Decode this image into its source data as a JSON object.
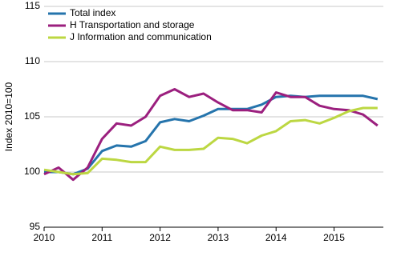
{
  "chart_data": {
    "type": "line",
    "y_label": "Index 2010=100",
    "x": [
      2010,
      2010.25,
      2010.5,
      2010.75,
      2011,
      2011.25,
      2011.5,
      2011.75,
      2012,
      2012.25,
      2012.5,
      2012.75,
      2013,
      2013.25,
      2013.5,
      2013.75,
      2014,
      2014.25,
      2014.5,
      2014.75,
      2015,
      2015.25,
      2015.5,
      2015.75
    ],
    "series": [
      {
        "name": "Total index",
        "color": "#2574ac",
        "values": [
          100.0,
          100.0,
          99.8,
          100.3,
          101.9,
          102.4,
          102.3,
          102.8,
          104.5,
          104.8,
          104.6,
          105.1,
          105.7,
          105.7,
          105.7,
          106.1,
          106.8,
          106.9,
          106.8,
          106.9,
          106.9,
          106.9,
          106.9,
          106.6
        ]
      },
      {
        "name": "H Transportation and storage",
        "color": "#9b1f7e",
        "values": [
          99.8,
          100.4,
          99.3,
          100.4,
          103.0,
          104.4,
          104.2,
          105.0,
          106.9,
          107.5,
          106.8,
          107.1,
          106.3,
          105.6,
          105.6,
          105.4,
          107.2,
          106.8,
          106.8,
          106.0,
          105.7,
          105.6,
          105.2,
          104.2
        ]
      },
      {
        "name": "J Information and communication",
        "color": "#bcd742",
        "values": [
          100.2,
          100.0,
          99.8,
          99.9,
          101.2,
          101.1,
          100.9,
          100.9,
          102.3,
          102.0,
          102.0,
          102.1,
          103.1,
          103.0,
          102.6,
          103.3,
          103.7,
          104.6,
          104.7,
          104.4,
          104.9,
          105.5,
          105.8,
          105.8
        ]
      }
    ],
    "xlim": [
      2010,
      2015.85
    ],
    "xticks": [
      2010,
      2011,
      2012,
      2013,
      2014,
      2015
    ],
    "ylim": [
      95,
      115
    ],
    "yticks": [
      95,
      100,
      105,
      110,
      115
    ],
    "grid": true,
    "legend": "top-left"
  }
}
